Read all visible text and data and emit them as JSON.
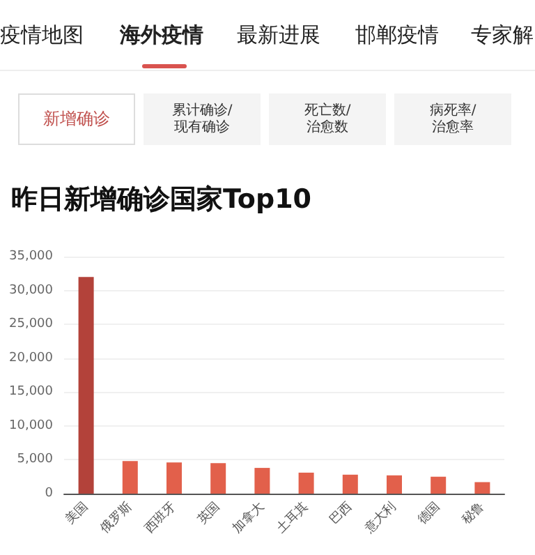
{
  "chart_data": {
    "type": "bar",
    "title": "昨日新增确诊国家Top10",
    "categories": [
      "美国",
      "俄罗斯",
      "西班牙",
      "英国",
      "加拿大",
      "土耳其",
      "巴西",
      "意大利",
      "德国",
      "秘鲁"
    ],
    "values": [
      32000,
      4800,
      4600,
      4500,
      3800,
      3100,
      2800,
      2700,
      2500,
      1700
    ],
    "colors": [
      "#b3423a",
      "#e2604b",
      "#e2604b",
      "#e2604b",
      "#e2604b",
      "#e2604b",
      "#e2604b",
      "#e2604b",
      "#e2604b",
      "#e2604b"
    ],
    "ylim": [
      0,
      35000
    ],
    "yticks": [
      0,
      {
        "value": 5000,
        "label": "5,000"
      },
      {
        "value": 10000,
        "label": "10,000"
      },
      {
        "value": 15000,
        "label": "15,000"
      },
      {
        "value": 20000,
        "label": "20,000"
      },
      {
        "value": 25000,
        "label": "25,000"
      },
      {
        "value": 30000,
        "label": "30,000"
      },
      {
        "value": 35000,
        "label": "35,000"
      }
    ],
    "grid": "y",
    "annotations": [
      "疫情地图",
      "海外疫情",
      "最新进展",
      "邯郸疫情",
      "专家解",
      "新增确诊",
      "累计确诊/\n现有确诊",
      "死亡数/\n治愈数",
      "病死率/\n治愈率"
    ]
  }
}
